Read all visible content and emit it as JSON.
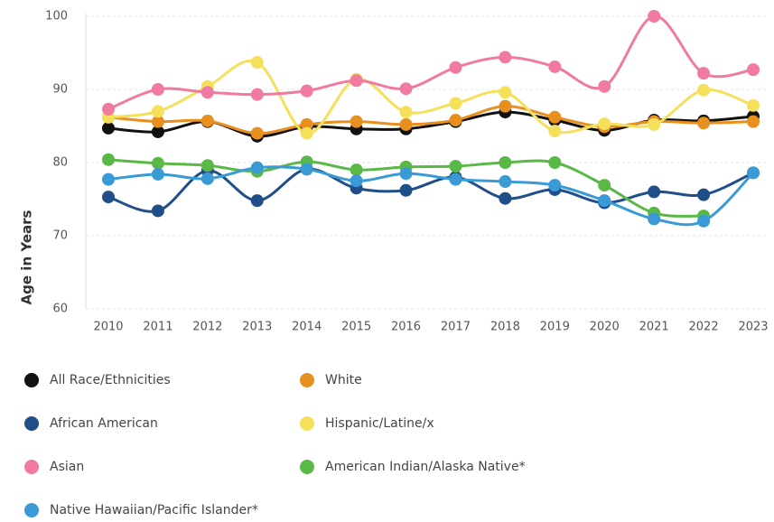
{
  "chart_data": {
    "type": "line",
    "y_label": "Age in Years",
    "x": [
      "2010",
      "2011",
      "2012",
      "2013",
      "2014",
      "2015",
      "2016",
      "2017",
      "2018",
      "2019",
      "2020",
      "2021",
      "2022",
      "2023"
    ],
    "ylim": [
      60,
      100
    ],
    "yticks": [
      60,
      70,
      80,
      90,
      100
    ],
    "grid": true,
    "series": [
      {
        "name": "All Race/Ethnicities",
        "color": "#111111",
        "values": [
          84.7,
          84.2,
          85.6,
          83.6,
          84.9,
          84.6,
          84.6,
          85.6,
          86.9,
          85.8,
          84.4,
          85.8,
          85.7,
          86.3
        ]
      },
      {
        "name": "White",
        "color": "#e8901f",
        "values": [
          86.2,
          85.6,
          85.7,
          84.0,
          85.2,
          85.6,
          85.2,
          85.8,
          87.7,
          86.2,
          84.9,
          85.6,
          85.4,
          85.6
        ]
      },
      {
        "name": "African American",
        "color": "#1f4e89",
        "values": [
          75.3,
          73.4,
          78.9,
          74.8,
          79.1,
          76.5,
          76.2,
          78.0,
          75.1,
          76.3,
          74.5,
          76.0,
          75.6,
          78.6
        ]
      },
      {
        "name": "Hispanic/Latine/x",
        "color": "#f5e05c",
        "values": [
          86.2,
          87.0,
          90.4,
          93.7,
          84.0,
          91.4,
          86.9,
          88.1,
          89.6,
          84.3,
          85.3,
          85.2,
          89.9,
          87.8
        ]
      },
      {
        "name": "Asian",
        "color": "#f07aa0",
        "values": [
          87.3,
          90.0,
          89.6,
          89.3,
          89.8,
          91.2,
          90.1,
          93.0,
          94.4,
          93.1,
          90.4,
          100,
          92.2,
          92.7
        ]
      },
      {
        "name": "American Indian/Alaska Native*",
        "color": "#5ab946",
        "values": [
          80.4,
          79.9,
          79.6,
          78.8,
          80.1,
          79.0,
          79.4,
          79.5,
          80.0,
          80.0,
          76.9,
          73.1,
          72.7,
          null
        ]
      },
      {
        "name": "Native Hawaiian/Pacific Islander*",
        "color": "#3a9ad6",
        "values": [
          77.7,
          78.4,
          77.8,
          79.3,
          79.1,
          77.5,
          78.5,
          77.7,
          77.4,
          76.9,
          74.8,
          72.3,
          72.0,
          78.6
        ]
      }
    ]
  }
}
